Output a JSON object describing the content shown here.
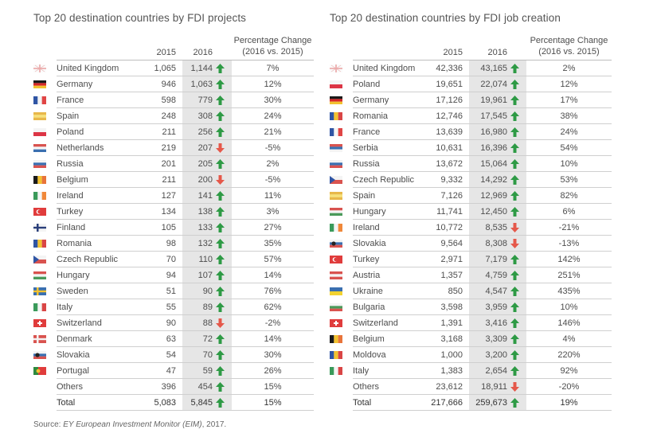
{
  "colors": {
    "up": "#2e9a45",
    "down": "#e5584a",
    "highlight": "#e6e6e6"
  },
  "left": {
    "title": "Top 20 destination countries by FDI projects",
    "headers": {
      "y2015": "2015",
      "y2016": "2016",
      "pct1": "Percentage Change",
      "pct2": "(2016 vs. 2015)"
    },
    "rows": [
      {
        "country": "United Kingdom",
        "flag": "uk",
        "v2015": "1,065",
        "v2016": "1,144",
        "dir": "up",
        "pct": "7%"
      },
      {
        "country": "Germany",
        "flag": "de",
        "v2015": "946",
        "v2016": "1,063",
        "dir": "up",
        "pct": "12%"
      },
      {
        "country": "France",
        "flag": "fr",
        "v2015": "598",
        "v2016": "779",
        "dir": "up",
        "pct": "30%"
      },
      {
        "country": "Spain",
        "flag": "es",
        "v2015": "248",
        "v2016": "308",
        "dir": "up",
        "pct": "24%"
      },
      {
        "country": "Poland",
        "flag": "pl",
        "v2015": "211",
        "v2016": "256",
        "dir": "up",
        "pct": "21%"
      },
      {
        "country": "Netherlands",
        "flag": "nl",
        "v2015": "219",
        "v2016": "207",
        "dir": "down",
        "pct": "-5%"
      },
      {
        "country": "Russia",
        "flag": "ru",
        "v2015": "201",
        "v2016": "205",
        "dir": "up",
        "pct": "2%"
      },
      {
        "country": "Belgium",
        "flag": "be",
        "v2015": "211",
        "v2016": "200",
        "dir": "down",
        "pct": "-5%"
      },
      {
        "country": "Ireland",
        "flag": "ie",
        "v2015": "127",
        "v2016": "141",
        "dir": "up",
        "pct": "11%"
      },
      {
        "country": "Turkey",
        "flag": "tr",
        "v2015": "134",
        "v2016": "138",
        "dir": "up",
        "pct": "3%"
      },
      {
        "country": "Finland",
        "flag": "fi",
        "v2015": "105",
        "v2016": "133",
        "dir": "up",
        "pct": "27%"
      },
      {
        "country": "Romania",
        "flag": "ro",
        "v2015": "98",
        "v2016": "132",
        "dir": "up",
        "pct": "35%"
      },
      {
        "country": "Czech Republic",
        "flag": "cz",
        "v2015": "70",
        "v2016": "110",
        "dir": "up",
        "pct": "57%"
      },
      {
        "country": "Hungary",
        "flag": "hu",
        "v2015": "94",
        "v2016": "107",
        "dir": "up",
        "pct": "14%"
      },
      {
        "country": "Sweden",
        "flag": "se",
        "v2015": "51",
        "v2016": "90",
        "dir": "up",
        "pct": "76%"
      },
      {
        "country": "Italy",
        "flag": "it",
        "v2015": "55",
        "v2016": "89",
        "dir": "up",
        "pct": "62%"
      },
      {
        "country": "Switzerland",
        "flag": "ch",
        "v2015": "90",
        "v2016": "88",
        "dir": "down",
        "pct": "-2%"
      },
      {
        "country": "Denmark",
        "flag": "dk",
        "v2015": "63",
        "v2016": "72",
        "dir": "up",
        "pct": "14%"
      },
      {
        "country": "Slovakia",
        "flag": "sk",
        "v2015": "54",
        "v2016": "70",
        "dir": "up",
        "pct": "30%"
      },
      {
        "country": "Portugal",
        "flag": "pt",
        "v2015": "47",
        "v2016": "59",
        "dir": "up",
        "pct": "26%"
      },
      {
        "country": "Others",
        "flag": "",
        "v2015": "396",
        "v2016": "454",
        "dir": "up",
        "pct": "15%"
      },
      {
        "country": "Total",
        "flag": "",
        "v2015": "5,083",
        "v2016": "5,845",
        "dir": "up",
        "pct": "15%"
      }
    ]
  },
  "right": {
    "title": "Top 20 destination countries by FDI job creation",
    "headers": {
      "y2015": "2015",
      "y2016": "2016",
      "pct1": "Percentage Change",
      "pct2": "(2016 vs. 2015)"
    },
    "rows": [
      {
        "country": "United Kingdom",
        "flag": "uk",
        "v2015": "42,336",
        "v2016": "43,165",
        "dir": "up",
        "pct": "2%"
      },
      {
        "country": "Poland",
        "flag": "pl",
        "v2015": "19,651",
        "v2016": "22,074",
        "dir": "up",
        "pct": "12%"
      },
      {
        "country": "Germany",
        "flag": "de",
        "v2015": "17,126",
        "v2016": "19,961",
        "dir": "up",
        "pct": "17%"
      },
      {
        "country": "Romania",
        "flag": "ro",
        "v2015": "12,746",
        "v2016": "17,545",
        "dir": "up",
        "pct": "38%"
      },
      {
        "country": "France",
        "flag": "fr",
        "v2015": "13,639",
        "v2016": "16,980",
        "dir": "up",
        "pct": "24%"
      },
      {
        "country": "Serbia",
        "flag": "rs",
        "v2015": "10,631",
        "v2016": "16,396",
        "dir": "up",
        "pct": "54%"
      },
      {
        "country": "Russia",
        "flag": "ru",
        "v2015": "13,672",
        "v2016": "15,064",
        "dir": "up",
        "pct": "10%"
      },
      {
        "country": "Czech Republic",
        "flag": "cz",
        "v2015": "9,332",
        "v2016": "14,292",
        "dir": "up",
        "pct": "53%"
      },
      {
        "country": "Spain",
        "flag": "es",
        "v2015": "7,126",
        "v2016": "12,969",
        "dir": "up",
        "pct": "82%"
      },
      {
        "country": "Hungary",
        "flag": "hu",
        "v2015": "11,741",
        "v2016": "12,450",
        "dir": "up",
        "pct": "6%"
      },
      {
        "country": "Ireland",
        "flag": "ie",
        "v2015": "10,772",
        "v2016": "8,535",
        "dir": "down",
        "pct": "-21%"
      },
      {
        "country": "Slovakia",
        "flag": "sk",
        "v2015": "9,564",
        "v2016": "8,308",
        "dir": "down",
        "pct": "-13%"
      },
      {
        "country": "Turkey",
        "flag": "tr",
        "v2015": "2,971",
        "v2016": "7,179",
        "dir": "up",
        "pct": "142%"
      },
      {
        "country": "Austria",
        "flag": "at",
        "v2015": "1,357",
        "v2016": "4,759",
        "dir": "up",
        "pct": "251%"
      },
      {
        "country": "Ukraine",
        "flag": "ua",
        "v2015": "850",
        "v2016": "4,547",
        "dir": "up",
        "pct": "435%"
      },
      {
        "country": "Bulgaria",
        "flag": "bg",
        "v2015": "3,598",
        "v2016": "3,959",
        "dir": "up",
        "pct": "10%"
      },
      {
        "country": "Switzerland",
        "flag": "ch",
        "v2015": "1,391",
        "v2016": "3,416",
        "dir": "up",
        "pct": "146%"
      },
      {
        "country": "Belgium",
        "flag": "be",
        "v2015": "3,168",
        "v2016": "3,309",
        "dir": "up",
        "pct": "4%"
      },
      {
        "country": "Moldova",
        "flag": "md",
        "v2015": "1,000",
        "v2016": "3,200",
        "dir": "up",
        "pct": "220%"
      },
      {
        "country": "Italy",
        "flag": "it",
        "v2015": "1,383",
        "v2016": "2,654",
        "dir": "up",
        "pct": "92%"
      },
      {
        "country": "Others",
        "flag": "",
        "v2015": "23,612",
        "v2016": "18,911",
        "dir": "down",
        "pct": "-20%"
      },
      {
        "country": "Total",
        "flag": "",
        "v2015": "217,666",
        "v2016": "259,673",
        "dir": "up",
        "pct": "19%"
      }
    ]
  },
  "source": {
    "prefix": "Source: ",
    "italic": "EY European Investment Monitor (EIM)",
    "suffix": ", 2017."
  }
}
